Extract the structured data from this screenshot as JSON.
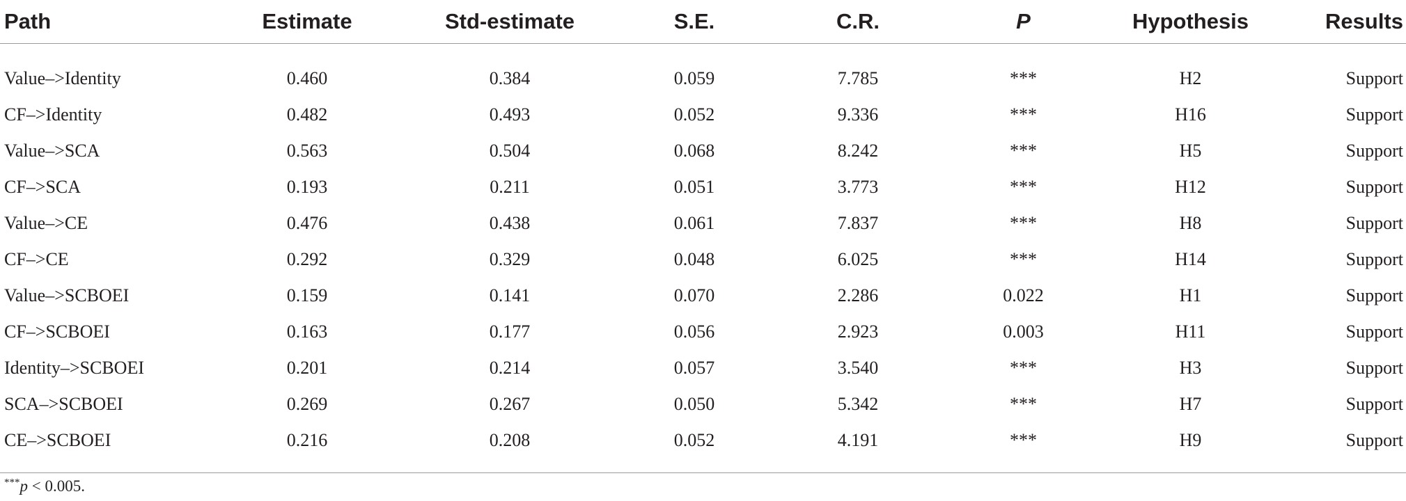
{
  "table": {
    "headers": [
      {
        "key": "path",
        "label": "Path"
      },
      {
        "key": "estimate",
        "label": "Estimate"
      },
      {
        "key": "std_estimate",
        "label": "Std-estimate"
      },
      {
        "key": "se",
        "label": "S.E."
      },
      {
        "key": "cr",
        "label": "C.R."
      },
      {
        "key": "p",
        "label": "P"
      },
      {
        "key": "hypothesis",
        "label": "Hypothesis"
      },
      {
        "key": "results",
        "label": "Results"
      }
    ],
    "rows": [
      [
        "Value–>Identity",
        "0.460",
        "0.384",
        "0.059",
        "7.785",
        "***",
        "H2",
        "Support"
      ],
      [
        "CF–>Identity",
        "0.482",
        "0.493",
        "0.052",
        "9.336",
        "***",
        "H16",
        "Support"
      ],
      [
        "Value–>SCA",
        "0.563",
        "0.504",
        "0.068",
        "8.242",
        "***",
        "H5",
        "Support"
      ],
      [
        "CF–>SCA",
        "0.193",
        "0.211",
        "0.051",
        "3.773",
        "***",
        "H12",
        "Support"
      ],
      [
        "Value–>CE",
        "0.476",
        "0.438",
        "0.061",
        "7.837",
        "***",
        "H8",
        "Support"
      ],
      [
        "CF–>CE",
        "0.292",
        "0.329",
        "0.048",
        "6.025",
        "***",
        "H14",
        "Support"
      ],
      [
        "Value–>SCBOEI",
        "0.159",
        "0.141",
        "0.070",
        "2.286",
        "0.022",
        "H1",
        "Support"
      ],
      [
        "CF–>SCBOEI",
        "0.163",
        "0.177",
        "0.056",
        "2.923",
        "0.003",
        "H11",
        "Support"
      ],
      [
        "Identity–>SCBOEI",
        "0.201",
        "0.214",
        "0.057",
        "3.540",
        "***",
        "H3",
        "Support"
      ],
      [
        "SCA–>SCBOEI",
        "0.269",
        "0.267",
        "0.050",
        "5.342",
        "***",
        "H7",
        "Support"
      ],
      [
        "CE–>SCBOEI",
        "0.216",
        "0.208",
        "0.052",
        "4.191",
        "***",
        "H9",
        "Support"
      ]
    ]
  },
  "footnote": {
    "marker": "***",
    "variable": "p",
    "text": " < 0.005."
  }
}
